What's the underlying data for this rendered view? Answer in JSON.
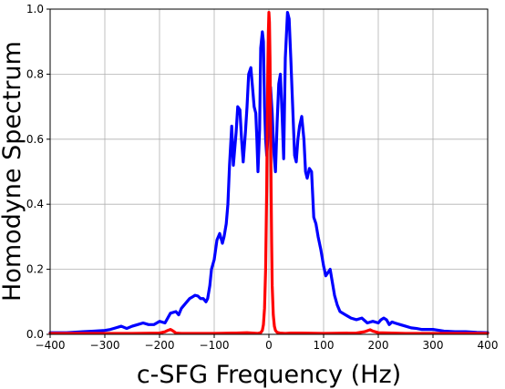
{
  "chart_data": {
    "type": "line",
    "xlabel": "c-SFG Frequency (Hz)",
    "ylabel": "Homodyne Spectrum",
    "xlim": [
      -400,
      400
    ],
    "ylim": [
      0.0,
      1.0
    ],
    "xticks": [
      -400,
      -300,
      -200,
      -100,
      0,
      100,
      200,
      300,
      400
    ],
    "xtick_labels": [
      "−400",
      "−300",
      "−200",
      "−100",
      "0",
      "100",
      "200",
      "300",
      "400"
    ],
    "yticks": [
      0.0,
      0.2,
      0.4,
      0.6,
      0.8,
      1.0
    ],
    "ytick_labels": [
      "0.0",
      "0.2",
      "0.4",
      "0.6",
      "0.8",
      "1.0"
    ],
    "grid": true,
    "series": [
      {
        "color": "#0000ff",
        "x": [
          -400,
          -370,
          -340,
          -320,
          -300,
          -290,
          -280,
          -270,
          -260,
          -250,
          -240,
          -230,
          -220,
          -210,
          -200,
          -190,
          -180,
          -170,
          -165,
          -160,
          -150,
          -145,
          -140,
          -135,
          -130,
          -125,
          -120,
          -115,
          -112,
          -108,
          -105,
          -100,
          -95,
          -90,
          -85,
          -82,
          -78,
          -75,
          -72,
          -68,
          -65,
          -60,
          -57,
          -53,
          -50,
          -47,
          -43,
          -40,
          -37,
          -33,
          -30,
          -27,
          -24,
          -22,
          -20,
          -17,
          -15,
          -12,
          -10,
          -8,
          -6,
          -4,
          -2,
          0,
          3,
          6,
          9,
          12,
          15,
          18,
          21,
          24,
          27,
          30,
          34,
          37,
          40,
          43,
          47,
          50,
          53,
          56,
          60,
          64,
          67,
          70,
          74,
          78,
          82,
          86,
          90,
          95,
          100,
          104,
          108,
          112,
          115,
          120,
          125,
          130,
          140,
          150,
          160,
          170,
          180,
          190,
          200,
          205,
          210,
          215,
          220,
          225,
          230,
          240,
          250,
          260,
          270,
          280,
          300,
          320,
          340,
          360,
          380,
          400
        ],
        "y": [
          0.005,
          0.005,
          0.008,
          0.01,
          0.012,
          0.015,
          0.02,
          0.025,
          0.018,
          0.025,
          0.03,
          0.035,
          0.03,
          0.03,
          0.04,
          0.035,
          0.065,
          0.07,
          0.06,
          0.08,
          0.1,
          0.11,
          0.115,
          0.12,
          0.118,
          0.11,
          0.11,
          0.1,
          0.11,
          0.15,
          0.2,
          0.23,
          0.29,
          0.31,
          0.28,
          0.3,
          0.34,
          0.4,
          0.52,
          0.64,
          0.52,
          0.62,
          0.7,
          0.69,
          0.6,
          0.53,
          0.62,
          0.7,
          0.8,
          0.82,
          0.76,
          0.7,
          0.68,
          0.6,
          0.5,
          0.63,
          0.88,
          0.93,
          0.9,
          0.7,
          0.6,
          0.55,
          0.6,
          0.7,
          0.76,
          0.68,
          0.56,
          0.5,
          0.65,
          0.77,
          0.8,
          0.68,
          0.54,
          0.85,
          0.99,
          0.97,
          0.85,
          0.72,
          0.55,
          0.53,
          0.6,
          0.64,
          0.67,
          0.6,
          0.5,
          0.48,
          0.51,
          0.5,
          0.36,
          0.34,
          0.3,
          0.26,
          0.21,
          0.18,
          0.19,
          0.2,
          0.17,
          0.12,
          0.09,
          0.07,
          0.06,
          0.05,
          0.045,
          0.05,
          0.035,
          0.04,
          0.035,
          0.045,
          0.05,
          0.045,
          0.03,
          0.038,
          0.035,
          0.03,
          0.025,
          0.02,
          0.018,
          0.015,
          0.015,
          0.01,
          0.008,
          0.008,
          0.006,
          0.005
        ]
      },
      {
        "color": "#ff0000",
        "x": [
          -400,
          -300,
          -250,
          -200,
          -190,
          -185,
          -180,
          -175,
          -170,
          -160,
          -100,
          -60,
          -40,
          -30,
          -20,
          -15,
          -12,
          -10,
          -8,
          -6,
          -4,
          -3,
          -2,
          -1,
          0,
          1,
          2,
          3,
          4,
          5,
          6,
          8,
          10,
          12,
          15,
          20,
          30,
          40,
          60,
          100,
          160,
          175,
          185,
          190,
          200,
          250,
          300,
          400
        ],
        "y": [
          0.003,
          0.003,
          0.003,
          0.004,
          0.008,
          0.012,
          0.015,
          0.01,
          0.004,
          0.003,
          0.003,
          0.004,
          0.005,
          0.004,
          0.003,
          0.005,
          0.012,
          0.03,
          0.08,
          0.2,
          0.45,
          0.65,
          0.82,
          0.93,
          0.99,
          0.96,
          0.85,
          0.65,
          0.45,
          0.28,
          0.15,
          0.06,
          0.025,
          0.012,
          0.006,
          0.004,
          0.003,
          0.004,
          0.004,
          0.003,
          0.004,
          0.008,
          0.014,
          0.01,
          0.005,
          0.003,
          0.003,
          0.003
        ]
      }
    ]
  }
}
